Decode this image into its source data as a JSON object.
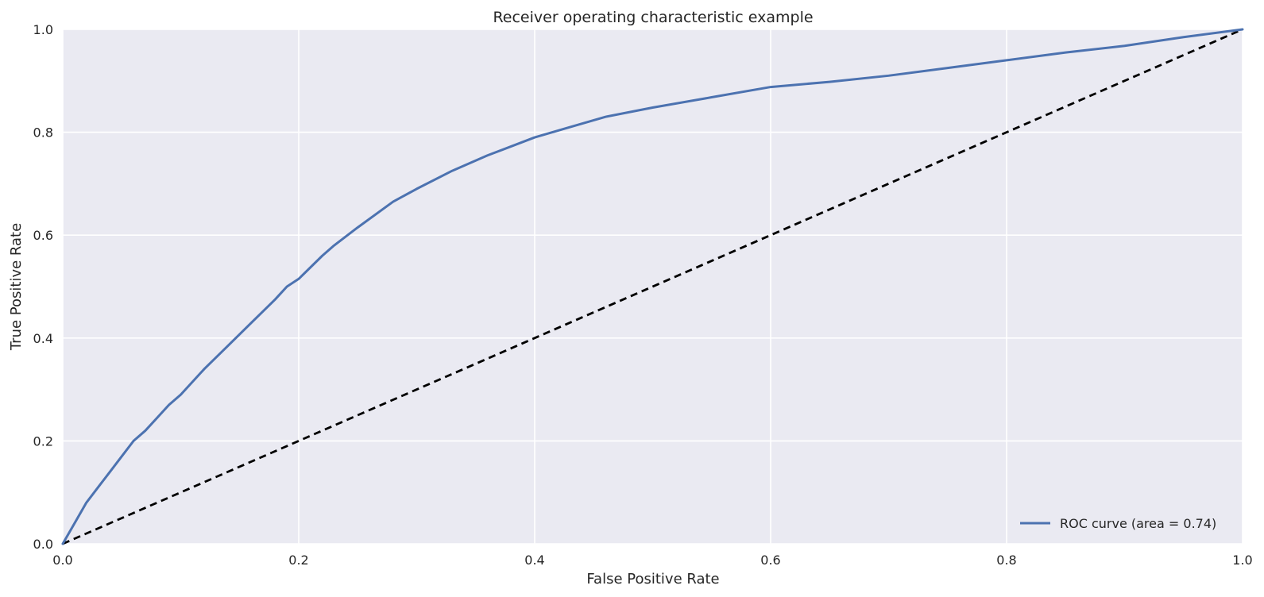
{
  "chart_data": {
    "type": "line",
    "title": "Receiver operating characteristic example",
    "xlabel": "False Positive Rate",
    "ylabel": "True Positive Rate",
    "xlim": [
      0.0,
      1.0
    ],
    "ylim": [
      0.0,
      1.0
    ],
    "xticks": [
      "0.0",
      "0.2",
      "0.4",
      "0.6",
      "0.8",
      "1.0"
    ],
    "yticks": [
      "0.0",
      "0.2",
      "0.4",
      "0.6",
      "0.8",
      "1.0"
    ],
    "grid": true,
    "legend_position": "lower-right",
    "series": [
      {
        "name": "ROC curve (area = 0.74)",
        "color": "#4C72B0",
        "style": "solid",
        "x": [
          0.0,
          0.01,
          0.02,
          0.03,
          0.04,
          0.05,
          0.06,
          0.07,
          0.08,
          0.09,
          0.1,
          0.12,
          0.14,
          0.16,
          0.18,
          0.19,
          0.2,
          0.22,
          0.23,
          0.25,
          0.28,
          0.3,
          0.33,
          0.36,
          0.4,
          0.43,
          0.46,
          0.5,
          0.55,
          0.6,
          0.65,
          0.7,
          0.75,
          0.8,
          0.85,
          0.9,
          0.95,
          1.0
        ],
        "y": [
          0.0,
          0.04,
          0.08,
          0.11,
          0.14,
          0.17,
          0.2,
          0.22,
          0.245,
          0.27,
          0.29,
          0.34,
          0.385,
          0.43,
          0.475,
          0.5,
          0.515,
          0.56,
          0.58,
          0.615,
          0.665,
          0.69,
          0.725,
          0.755,
          0.79,
          0.81,
          0.83,
          0.848,
          0.868,
          0.888,
          0.898,
          0.91,
          0.925,
          0.94,
          0.955,
          0.968,
          0.985,
          1.0
        ]
      },
      {
        "name": "",
        "color": "#000000",
        "style": "dashed",
        "x": [
          0.0,
          1.0
        ],
        "y": [
          0.0,
          1.0
        ]
      }
    ],
    "colors": {
      "plot_background": "#EAEAF2",
      "grid": "#FFFFFF",
      "text": "#262626"
    }
  }
}
